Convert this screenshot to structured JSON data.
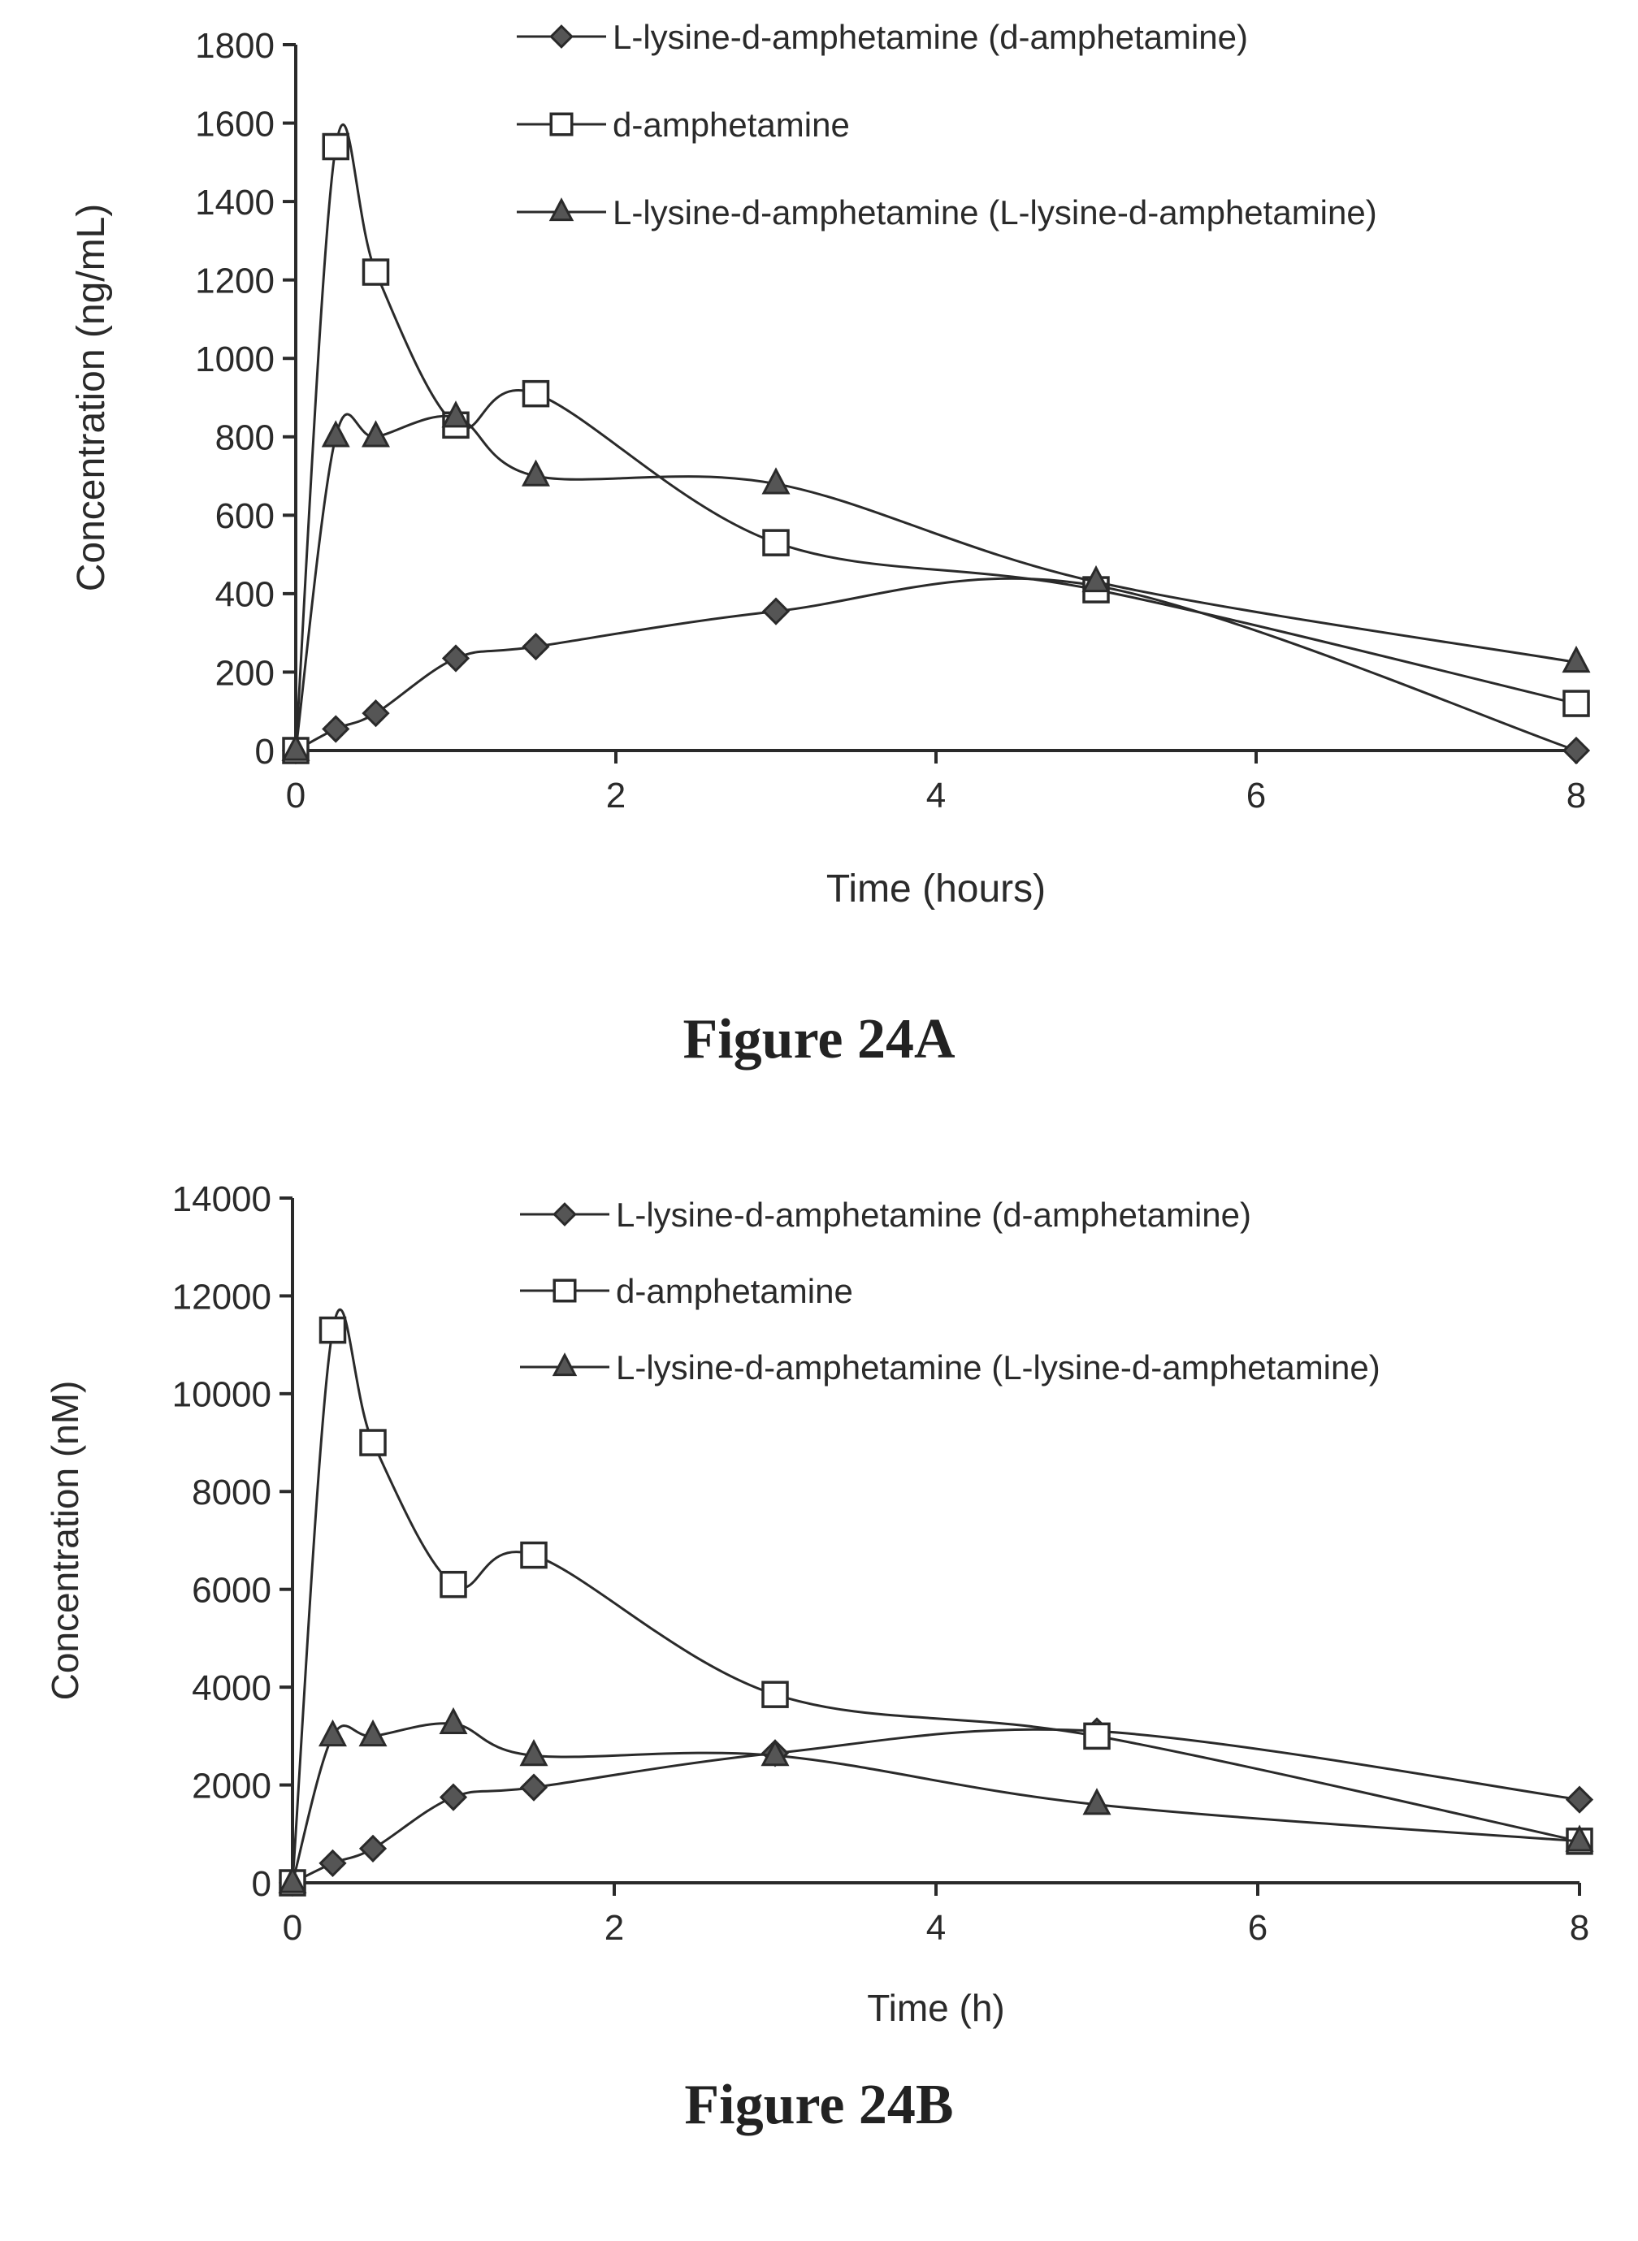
{
  "chart_data": [
    {
      "type": "line",
      "title": "",
      "xlabel": "Time (hours)",
      "ylabel": "Concentration (ng/mL)",
      "xlim": [
        0,
        8
      ],
      "ylim": [
        0,
        1800
      ],
      "xticks": [
        0,
        2,
        4,
        6,
        8
      ],
      "yticks": [
        0,
        200,
        400,
        600,
        800,
        1000,
        1200,
        1400,
        1600,
        1800
      ],
      "grid": false,
      "legend_position": "top-right",
      "series": [
        {
          "name": "L-lysine-d-amphetamine (d-amphetamine)",
          "marker": "diamond",
          "x": [
            0,
            0.25,
            0.5,
            1,
            1.5,
            3,
            5,
            8
          ],
          "y": [
            0,
            55,
            95,
            235,
            265,
            355,
            420,
            0
          ]
        },
        {
          "name": "d-amphetamine",
          "marker": "square-open",
          "x": [
            0,
            0.25,
            0.5,
            1,
            1.5,
            3,
            5,
            8
          ],
          "y": [
            0,
            1540,
            1220,
            830,
            910,
            530,
            410,
            120
          ]
        },
        {
          "name": "L-lysine-d-amphetamine (L-lysine-d-amphetamine)",
          "marker": "triangle",
          "x": [
            0,
            0.25,
            0.5,
            1,
            1.5,
            3,
            5,
            8
          ],
          "y": [
            0,
            800,
            800,
            850,
            700,
            680,
            430,
            225
          ]
        }
      ]
    },
    {
      "type": "line",
      "title": "",
      "xlabel": "Time (h)",
      "ylabel": "Concentration (nM)",
      "xlim": [
        0,
        8
      ],
      "ylim": [
        0,
        14000
      ],
      "xticks": [
        0,
        2,
        4,
        6,
        8
      ],
      "yticks": [
        0,
        2000,
        4000,
        6000,
        8000,
        10000,
        12000,
        14000
      ],
      "grid": false,
      "legend_position": "top-right",
      "series": [
        {
          "name": "L-lysine-d-amphetamine (d-amphetamine)",
          "marker": "diamond",
          "x": [
            0,
            0.25,
            0.5,
            1,
            1.5,
            3,
            5,
            8
          ],
          "y": [
            0,
            400,
            700,
            1750,
            1950,
            2650,
            3100,
            1700
          ]
        },
        {
          "name": "d-amphetamine",
          "marker": "square-open",
          "x": [
            0,
            0.25,
            0.5,
            1,
            1.5,
            3,
            5,
            8
          ],
          "y": [
            0,
            11300,
            9000,
            6100,
            6700,
            3850,
            3000,
            850
          ]
        },
        {
          "name": "L-lysine-d-amphetamine (L-lysine-d-amphetamine)",
          "marker": "triangle",
          "x": [
            0,
            0.25,
            0.5,
            1,
            1.5,
            3,
            5,
            8
          ],
          "y": [
            0,
            3000,
            3000,
            3250,
            2600,
            2600,
            1600,
            850
          ]
        }
      ]
    }
  ],
  "captions": {
    "figure_a": "Figure 24A",
    "figure_b": "Figure 24B"
  },
  "colors": {
    "ink": "#2a2a2a",
    "marker_fill": "#555555"
  }
}
